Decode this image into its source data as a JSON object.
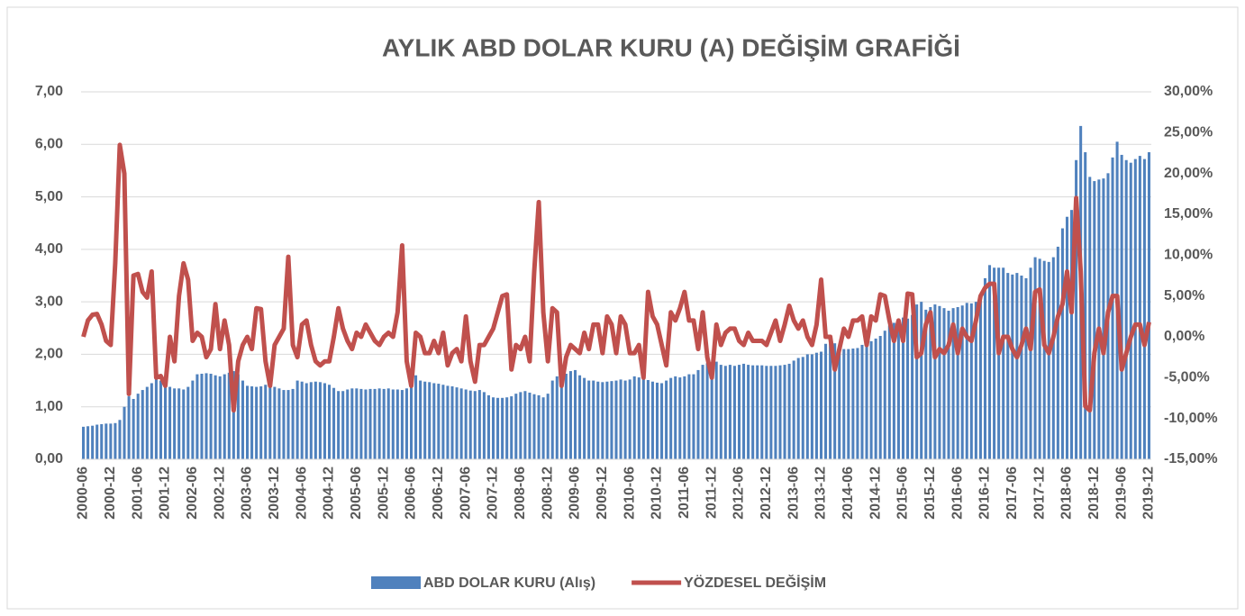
{
  "chart_data": {
    "type": "bar_line",
    "title": "AYLIK ABD DOLAR KURU (A) DEĞİŞİM GRAFİĞİ",
    "categories": [
      "2000-06",
      null,
      null,
      null,
      null,
      null,
      "2000-12",
      null,
      null,
      null,
      null,
      null,
      "2001-06",
      null,
      null,
      null,
      null,
      null,
      "2001-12",
      null,
      null,
      null,
      null,
      null,
      "2002-06",
      null,
      null,
      null,
      null,
      null,
      "2002-12",
      null,
      null,
      null,
      null,
      null,
      "2003-06",
      null,
      null,
      null,
      null,
      null,
      "2003-12",
      null,
      null,
      null,
      null,
      null,
      "2004-06",
      null,
      null,
      null,
      null,
      null,
      "2004-12",
      null,
      null,
      null,
      null,
      null,
      "2005-06",
      null,
      null,
      null,
      null,
      null,
      "2005-12",
      null,
      null,
      null,
      null,
      null,
      "2006-06",
      null,
      null,
      null,
      null,
      null,
      "2006-12",
      null,
      null,
      null,
      null,
      null,
      "2007-06",
      null,
      null,
      null,
      null,
      null,
      "2007-12",
      null,
      null,
      null,
      null,
      null,
      "2008-06",
      null,
      null,
      null,
      null,
      null,
      "2008-12",
      null,
      null,
      null,
      null,
      null,
      "2009-06",
      null,
      null,
      null,
      null,
      null,
      "2009-12",
      null,
      null,
      null,
      null,
      null,
      "2010-06",
      null,
      null,
      null,
      null,
      null,
      "2010-12",
      null,
      null,
      null,
      null,
      null,
      "2011-06",
      null,
      null,
      null,
      null,
      null,
      "2011-12",
      null,
      null,
      null,
      null,
      null,
      "2012-06",
      null,
      null,
      null,
      null,
      null,
      "2012-12",
      null,
      null,
      null,
      null,
      null,
      "2013-06",
      null,
      null,
      null,
      null,
      null,
      "2013-12",
      null,
      null,
      null,
      null,
      null,
      "2014-06",
      null,
      null,
      null,
      null,
      null,
      "2014-12",
      null,
      null,
      null,
      null,
      null,
      "2015-06",
      null,
      null,
      null,
      null,
      null,
      "2015-12",
      null,
      null,
      null,
      null,
      null,
      "2016-06",
      null,
      null,
      null,
      null,
      null,
      "2016-12",
      null,
      null,
      null,
      null,
      null,
      "2017-06",
      null,
      null,
      null,
      null,
      null,
      "2017-12",
      null,
      null,
      null,
      null,
      null,
      "2018-06",
      null,
      null,
      null,
      null,
      null,
      "2018-12",
      null,
      null,
      null,
      null,
      null,
      "2019-06",
      null,
      null,
      null,
      null,
      null,
      "2019-12"
    ],
    "series": [
      {
        "name": "ABD DOLAR KURU (Alış)",
        "color": "#4f81bd",
        "values": [
          0.62,
          0.63,
          0.64,
          0.66,
          0.67,
          0.68,
          0.68,
          0.69,
          0.75,
          1.0,
          1.2,
          1.15,
          1.25,
          1.32,
          1.38,
          1.45,
          1.58,
          1.5,
          1.45,
          1.38,
          1.35,
          1.35,
          1.33,
          1.38,
          1.5,
          1.62,
          1.63,
          1.64,
          1.63,
          1.6,
          1.58,
          1.62,
          1.65,
          1.68,
          1.62,
          1.5,
          1.4,
          1.39,
          1.38,
          1.39,
          1.42,
          1.45,
          1.38,
          1.35,
          1.32,
          1.32,
          1.34,
          1.5,
          1.48,
          1.45,
          1.47,
          1.48,
          1.47,
          1.45,
          1.42,
          1.36,
          1.3,
          1.3,
          1.33,
          1.35,
          1.35,
          1.34,
          1.33,
          1.34,
          1.34,
          1.35,
          1.34,
          1.35,
          1.33,
          1.33,
          1.32,
          1.35,
          1.4,
          1.6,
          1.5,
          1.48,
          1.47,
          1.45,
          1.44,
          1.42,
          1.4,
          1.39,
          1.37,
          1.35,
          1.33,
          1.31,
          1.3,
          1.32,
          1.28,
          1.22,
          1.18,
          1.17,
          1.17,
          1.18,
          1.2,
          1.25,
          1.28,
          1.3,
          1.27,
          1.24,
          1.22,
          1.18,
          1.25,
          1.5,
          1.58,
          1.6,
          1.63,
          1.68,
          1.7,
          1.6,
          1.55,
          1.5,
          1.5,
          1.48,
          1.47,
          1.48,
          1.49,
          1.5,
          1.52,
          1.5,
          1.52,
          1.58,
          1.56,
          1.53,
          1.51,
          1.48,
          1.46,
          1.45,
          1.5,
          1.55,
          1.58,
          1.56,
          1.58,
          1.62,
          1.62,
          1.7,
          1.8,
          1.83,
          1.85,
          1.86,
          1.8,
          1.78,
          1.8,
          1.78,
          1.8,
          1.82,
          1.8,
          1.79,
          1.79,
          1.79,
          1.78,
          1.78,
          1.78,
          1.79,
          1.8,
          1.82,
          1.88,
          1.93,
          1.95,
          2.0,
          2.0,
          2.03,
          2.05,
          2.2,
          2.22,
          2.21,
          2.15,
          2.1,
          2.1,
          2.11,
          2.12,
          2.18,
          2.25,
          2.25,
          2.3,
          2.35,
          2.45,
          2.55,
          2.6,
          2.62,
          2.7,
          2.68,
          2.75,
          2.95,
          3.0,
          2.85,
          2.9,
          2.95,
          2.92,
          2.88,
          2.83,
          2.88,
          2.9,
          2.93,
          2.98,
          2.97,
          3.0,
          3.1,
          3.45,
          3.7,
          3.65,
          3.65,
          3.65,
          3.55,
          3.52,
          3.55,
          3.5,
          3.45,
          3.65,
          3.85,
          3.82,
          3.78,
          3.76,
          3.85,
          4.05,
          4.4,
          4.62,
          4.75,
          5.7,
          6.35,
          5.85,
          5.38,
          5.3,
          5.33,
          5.35,
          5.45,
          5.75,
          6.05,
          5.8,
          5.7,
          5.65,
          5.72,
          5.78,
          5.72,
          5.85
        ]
      },
      {
        "name": "YÖZDESEL DEĞİŞİM",
        "color": "#c0504d",
        "axis": "y2",
        "values": [
          0,
          2,
          2.7,
          2.8,
          1.5,
          -0.5,
          -1,
          9,
          23.5,
          20,
          -7,
          7.5,
          7.7,
          5.5,
          4.8,
          8,
          -5,
          -4.8,
          -6,
          0,
          -3,
          5,
          9,
          7,
          -0.5,
          0.5,
          0,
          -2.5,
          -1.5,
          4,
          -1.5,
          2,
          -1,
          -9,
          -3,
          -1,
          0,
          -1.5,
          3.5,
          3.4,
          -3,
          -6,
          -1,
          0,
          1,
          9.8,
          -1,
          -2.5,
          1.5,
          2,
          -1,
          -3,
          -3.5,
          -3,
          -3,
          0,
          3.5,
          1,
          -0.5,
          -1.5,
          0.5,
          0,
          1.5,
          0.5,
          -0.5,
          -1,
          0,
          0.5,
          0,
          3,
          11.2,
          -3,
          -6,
          0.5,
          0,
          -2,
          -2,
          -0.5,
          -2,
          0.5,
          -3.5,
          -2,
          -1.5,
          -3,
          2.5,
          -3,
          -5.5,
          -1,
          -1,
          0,
          1,
          3,
          5,
          5.2,
          -4,
          -1,
          -1.5,
          0,
          -3,
          8,
          16.5,
          3,
          -3,
          3.5,
          3,
          -6,
          -2.5,
          -1,
          -1.5,
          -2,
          0.5,
          -1.5,
          1.5,
          1.5,
          -2,
          2.5,
          1.5,
          -2,
          2.5,
          1.5,
          -2,
          -2,
          -1,
          -5,
          5.5,
          2.5,
          1.5,
          -1,
          -3.5,
          3,
          2,
          3.5,
          5.5,
          2,
          2,
          -1.5,
          3,
          -2.5,
          -5,
          1.5,
          -1,
          0.5,
          1,
          1,
          -0.5,
          -1,
          0.5,
          -0.5,
          -0.5,
          -0.5,
          -1,
          0.5,
          2,
          -0.5,
          1.5,
          3.8,
          2,
          1,
          2,
          0,
          -1,
          1.5,
          7,
          0,
          0,
          -4,
          -1.5,
          1,
          0,
          2,
          2,
          2.5,
          -1,
          2.5,
          2,
          5.2,
          5,
          2,
          -0.5,
          2,
          -0.5,
          5.3,
          5.2,
          -2.5,
          -2,
          1.5,
          3,
          -2.5,
          -1.5,
          -2,
          -1,
          1.5,
          -2,
          1,
          0,
          -0.5,
          2,
          5,
          6,
          6.5,
          6.5,
          -2,
          0,
          0,
          -1.5,
          -2.5,
          -1,
          1,
          -1.5,
          5.5,
          5.8,
          -1,
          -2,
          0,
          2.5,
          4,
          8,
          3,
          17,
          8,
          -8.5,
          -9,
          -2,
          1,
          -2,
          3,
          5,
          5,
          -4,
          -2,
          0,
          1.5,
          1.5,
          -1,
          1.8
        ]
      }
    ],
    "ylim": [
      0,
      7
    ],
    "yticks": [
      {
        "value": 0,
        "label": "0,00"
      },
      {
        "value": 1,
        "label": "1,00"
      },
      {
        "value": 2,
        "label": "2,00"
      },
      {
        "value": 3,
        "label": "3,00"
      },
      {
        "value": 4,
        "label": "4,00"
      },
      {
        "value": 5,
        "label": "5,00"
      },
      {
        "value": 6,
        "label": "6,00"
      },
      {
        "value": 7,
        "label": "7,00"
      }
    ],
    "y2lim": [
      -15,
      30
    ],
    "y2ticks": [
      {
        "value": -15,
        "label": "-15,00%"
      },
      {
        "value": -10,
        "label": "-10,00%"
      },
      {
        "value": -5,
        "label": "-5,00%"
      },
      {
        "value": 0,
        "label": "0,00%"
      },
      {
        "value": 5,
        "label": "5,00%"
      },
      {
        "value": 10,
        "label": "10,00%"
      },
      {
        "value": 15,
        "label": "15,00%"
      },
      {
        "value": 20,
        "label": "20,00%"
      },
      {
        "value": 25,
        "label": "25,00%"
      },
      {
        "value": 30,
        "label": "30,00%"
      }
    ],
    "grid": true,
    "legend": "bottom"
  }
}
